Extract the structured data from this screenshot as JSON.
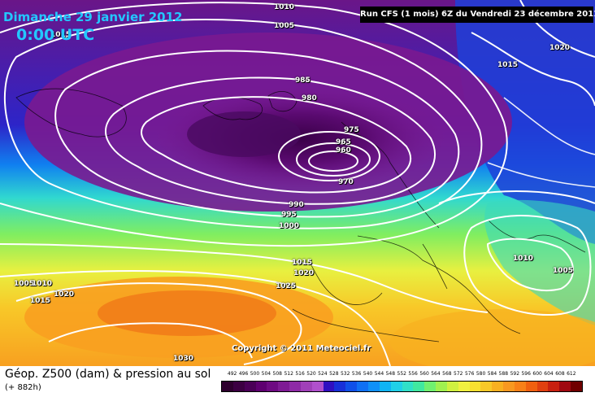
{
  "header": {
    "date": "Dimanche 29 janvier 2012",
    "time": "0:00 UTC",
    "run": "Run CFS (1 mois) 6Z du Vendredi 23 décembre 2011"
  },
  "copyright": "Copyright © 2011 Meteociel.fr",
  "legend": {
    "title": "Géop. Z500 (dam) & pression au sol",
    "subtitle": "(+ 882h)",
    "ticks": [
      "492",
      "496",
      "500",
      "504",
      "508",
      "512",
      "516",
      "520",
      "524",
      "528",
      "532",
      "536",
      "540",
      "544",
      "548",
      "552",
      "556",
      "560",
      "564",
      "568",
      "572",
      "576",
      "580",
      "584",
      "588",
      "592",
      "596",
      "600",
      "604",
      "608",
      "612"
    ],
    "colors": [
      "#2e002e",
      "#3c0042",
      "#4a0057",
      "#5e0070",
      "#6e0a82",
      "#7e1a94",
      "#8e2aa6",
      "#a040b8",
      "#b050cc",
      "#3010c0",
      "#1830d8",
      "#1050e8",
      "#1070f4",
      "#1090f8",
      "#10b4f4",
      "#20d0e8",
      "#30e0c8",
      "#40e8a0",
      "#70f070",
      "#a0f050",
      "#d0f040",
      "#f0f040",
      "#f8e030",
      "#f8c828",
      "#f8b020",
      "#f89820",
      "#f88018",
      "#f06010",
      "#e04010",
      "#c82010",
      "#a00810",
      "#700000"
    ]
  },
  "isobars": [
    "1015",
    "1010",
    "1005",
    "1020",
    "1015",
    "985",
    "980",
    "975",
    "965",
    "960",
    "970",
    "990",
    "995",
    "1000",
    "1015",
    "1020",
    "1025",
    "1010",
    "1005",
    "1005",
    "1010",
    "1020",
    "1015",
    "1030"
  ]
}
